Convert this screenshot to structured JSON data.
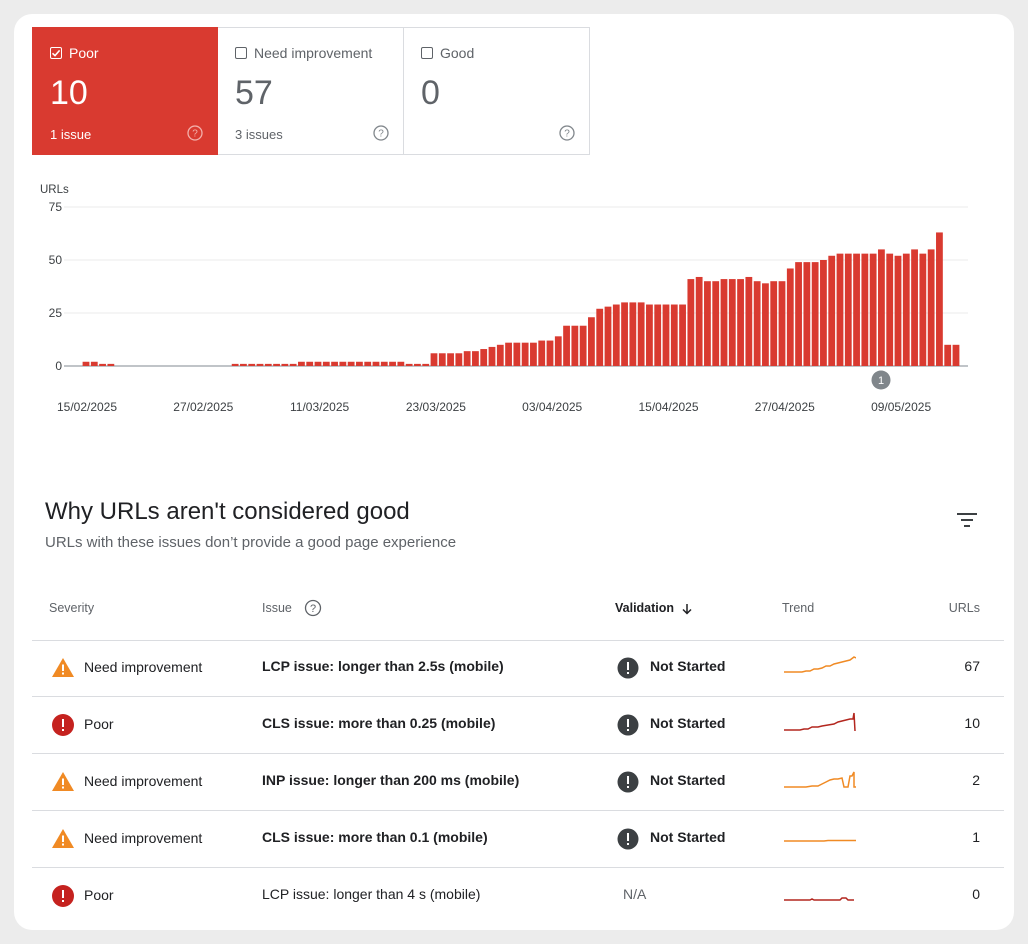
{
  "summary": {
    "cards": [
      {
        "label": "Poor",
        "count": "10",
        "issues": "1 issue",
        "checked": true
      },
      {
        "label": "Need improvement",
        "count": "57",
        "issues": "3 issues",
        "checked": false
      },
      {
        "label": "Good",
        "count": "0",
        "issues": "",
        "checked": false
      }
    ]
  },
  "chart_data": {
    "type": "bar",
    "ylabel": "URLs",
    "ylim": [
      0,
      75
    ],
    "yticks": [
      0,
      25,
      50,
      75
    ],
    "x_tick_labels": [
      "15/02/2025",
      "27/02/2025",
      "11/03/2025",
      "23/03/2025",
      "03/04/2025",
      "15/04/2025",
      "27/04/2025",
      "09/05/2025"
    ],
    "annotation": "1",
    "bar_color": "#d93a30",
    "values": [
      2,
      2,
      1,
      1,
      0,
      0,
      0,
      0,
      0,
      0,
      0,
      0,
      0,
      0,
      0,
      0,
      0,
      0,
      1,
      1,
      1,
      1,
      1,
      1,
      1,
      1,
      2,
      2,
      2,
      2,
      2,
      2,
      2,
      2,
      2,
      2,
      2,
      2,
      2,
      1,
      1,
      1,
      6,
      6,
      6,
      6,
      7,
      7,
      8,
      9,
      10,
      11,
      11,
      11,
      11,
      12,
      12,
      14,
      19,
      19,
      19,
      23,
      27,
      28,
      29,
      30,
      30,
      30,
      29,
      29,
      29,
      29,
      29,
      41,
      42,
      40,
      40,
      41,
      41,
      41,
      42,
      40,
      39,
      40,
      40,
      46,
      49,
      49,
      49,
      50,
      52,
      53,
      53,
      53,
      53,
      53,
      55,
      53,
      52,
      53,
      55,
      53,
      55,
      63,
      10,
      10
    ]
  },
  "section": {
    "title": "Why URLs aren't considered good",
    "subtitle": "URLs with these issues don’t provide a good page experience"
  },
  "table": {
    "headers": {
      "severity": "Severity",
      "issue": "Issue",
      "validation": "Validation",
      "trend": "Trend",
      "urls": "URLs"
    },
    "rows": [
      {
        "severity": "Need improvement",
        "issue": "LCP issue: longer than 2.5s (mobile)",
        "validation": "Not Started",
        "urls": "67"
      },
      {
        "severity": "Poor",
        "issue": "CLS issue: more than 0.25 (mobile)",
        "validation": "Not Started",
        "urls": "10"
      },
      {
        "severity": "Need improvement",
        "issue": "INP issue: longer than 200 ms (mobile)",
        "validation": "Not Started",
        "urls": "2"
      },
      {
        "severity": "Need improvement",
        "issue": "CLS issue: more than 0.1 (mobile)",
        "validation": "Not Started",
        "urls": "1"
      },
      {
        "severity": "Poor",
        "issue": "LCP issue: longer than 4 s (mobile)",
        "validation": "N/A",
        "urls": "0"
      }
    ]
  },
  "colors": {
    "poor": "#d93a30",
    "need_improvement": "#f08a24",
    "good": "#1e8e3e"
  }
}
